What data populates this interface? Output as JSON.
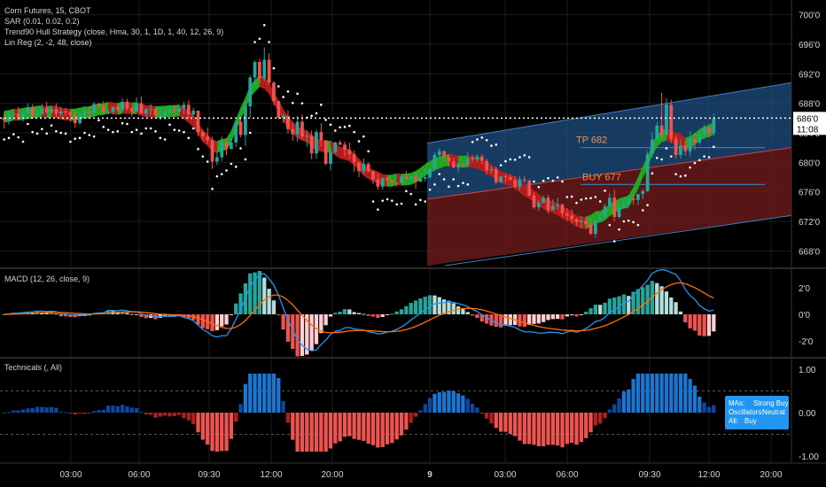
{
  "header": {
    "symbol_line": "Corn Futures, 15, CBOT",
    "indicators": [
      "SAR (0.01, 0.02, 0.2)",
      "Trend90 Hull Strategy (close, Hma, 30, 1, 1D, 1, 40, 12, 26, 9)",
      "Lin Reg (2, -2, 48, close)"
    ]
  },
  "price_axis": {
    "ticks": [
      "700'0",
      "696'0",
      "692'0",
      "688'0",
      "684'0",
      "680'0",
      "676'0",
      "672'0",
      "668'0"
    ],
    "last_price": "686'0",
    "countdown": "11:08"
  },
  "labels": {
    "tp": "TP 682",
    "buy": "BUY 677"
  },
  "macd": {
    "title": "MACD (12, 26, close, 9)",
    "ticks": [
      "2'0",
      "0'0",
      "-2'0"
    ]
  },
  "technicals": {
    "title": "Technicals (, All)",
    "ticks": [
      "1.00",
      "0.00",
      "-1.00"
    ],
    "box": [
      {
        "k": "MAs:",
        "v": "Strong Buy"
      },
      {
        "k": "Oscillators:",
        "v": "Neutral"
      },
      {
        "k": "All:",
        "v": "Buy"
      }
    ]
  },
  "time_axis": [
    "03:00",
    "06:00",
    "09:30",
    "12:00",
    "20:00",
    "9",
    "03:00",
    "06:00",
    "09:30",
    "12:00",
    "20:00"
  ],
  "colors": {
    "up": "#26a69a",
    "down": "#ef5350",
    "hull_green": "#1faa1f",
    "hull_red": "#b71c1c",
    "macd": "#2196f3",
    "signal": "#ff6d00",
    "grid": "#1c1c1c",
    "axis_text": "#d1d4dc",
    "channel_blue": "#1e4d80",
    "channel_red": "#6e1a1a",
    "box": "#2196f3"
  },
  "chart_data": {
    "type": "candlestick",
    "price_range": [
      666,
      702
    ],
    "candles": [
      [
        686.1,
        685.7,
        686.8,
        684.6
      ],
      [
        685.7,
        686.4,
        687.0,
        685.1
      ],
      [
        686.4,
        686.6,
        687.1,
        685.9
      ],
      [
        686.6,
        686.1,
        687.5,
        685.8
      ],
      [
        686.1,
        686.6,
        687.0,
        685.5
      ],
      [
        686.6,
        687.4,
        688.0,
        686.7
      ],
      [
        687.4,
        686.4,
        687.9,
        685.9
      ],
      [
        686.4,
        686.5,
        687.3,
        686.0
      ],
      [
        686.5,
        687.3,
        687.9,
        686.9
      ],
      [
        687.3,
        686.8,
        688.2,
        686.6
      ],
      [
        686.8,
        687.2,
        687.7,
        686.5
      ],
      [
        687.2,
        686.6,
        688.0,
        686.0
      ],
      [
        686.6,
        686.9,
        687.6,
        686.1
      ],
      [
        686.9,
        686.8,
        687.4,
        686.3
      ],
      [
        686.8,
        686.4,
        686.9,
        685.5
      ],
      [
        686.4,
        685.3,
        686.9,
        684.7
      ],
      [
        685.3,
        686.3,
        686.8,
        685.1
      ],
      [
        686.3,
        686.9,
        687.6,
        686.1
      ],
      [
        686.9,
        686.7,
        687.6,
        686.1
      ],
      [
        686.7,
        687.9,
        688.2,
        686.2
      ],
      [
        687.9,
        687.6,
        688.1,
        687.2
      ],
      [
        687.6,
        686.8,
        688.3,
        686.6
      ],
      [
        686.8,
        686.8,
        687.2,
        686.5
      ],
      [
        686.8,
        687.5,
        687.6,
        686.5
      ],
      [
        687.5,
        687.1,
        688.0,
        686.9
      ],
      [
        687.1,
        688.2,
        688.7,
        686.8
      ],
      [
        688.2,
        687.3,
        688.6,
        687.0
      ],
      [
        687.3,
        686.9,
        687.5,
        686.2
      ],
      [
        686.9,
        688.0,
        688.8,
        686.8
      ],
      [
        688.0,
        686.6,
        688.9,
        686.6
      ],
      [
        686.6,
        687.2,
        687.4,
        686.1
      ],
      [
        687.2,
        687.2,
        687.9,
        686.4
      ],
      [
        687.2,
        686.4,
        687.4,
        686.3
      ],
      [
        686.4,
        686.4,
        687.4,
        685.7
      ],
      [
        686.4,
        686.7,
        687.4,
        685.8
      ],
      [
        686.7,
        687.1,
        687.4,
        686.6
      ],
      [
        687.1,
        686.9,
        687.7,
        686.2
      ],
      [
        686.9,
        687.3,
        687.7,
        686.4
      ],
      [
        687.3,
        687.8,
        688.2,
        686.5
      ],
      [
        687.8,
        686.5,
        688.4,
        686.0
      ],
      [
        686.5,
        687.0,
        687.4,
        686.1
      ],
      [
        687.0,
        684.1,
        687.0,
        683.6
      ],
      [
        684.1,
        683.5,
        684.5,
        682.9
      ],
      [
        683.5,
        683.0,
        684.7,
        682.5
      ],
      [
        683.0,
        680.1,
        683.5,
        679.1
      ],
      [
        680.1,
        680.7,
        681.4,
        679.6
      ],
      [
        680.7,
        682.7,
        683.5,
        680.2
      ],
      [
        682.7,
        681.8,
        683.3,
        681.0
      ],
      [
        681.8,
        682.7,
        683.3,
        682.2
      ],
      [
        682.7,
        685.5,
        685.7,
        682.1
      ],
      [
        685.5,
        683.7,
        686.1,
        683.4
      ],
      [
        683.7,
        687.6,
        688.1,
        682.2
      ],
      [
        687.6,
        691.5,
        691.8,
        686.1
      ],
      [
        691.5,
        693.6,
        693.8,
        690.4
      ],
      [
        693.6,
        691.4,
        694.0,
        690.7
      ],
      [
        691.4,
        693.9,
        695.6,
        691.0
      ],
      [
        693.9,
        690.8,
        694.8,
        690.5
      ],
      [
        690.8,
        688.3,
        691.0,
        687.7
      ],
      [
        688.3,
        686.0,
        688.3,
        685.8
      ],
      [
        686.0,
        686.3,
        686.6,
        685.3
      ],
      [
        686.3,
        684.5,
        687.1,
        683.9
      ],
      [
        684.5,
        683.8,
        685.3,
        682.9
      ],
      [
        683.8,
        685.5,
        686.3,
        682.8
      ],
      [
        685.5,
        683.5,
        686.5,
        683.1
      ],
      [
        683.5,
        683.6,
        684.3,
        682.1
      ],
      [
        683.6,
        681.2,
        684.3,
        680.4
      ],
      [
        681.2,
        684.1,
        684.4,
        680.5
      ],
      [
        684.1,
        683.0,
        685.3,
        682.1
      ],
      [
        683.0,
        679.8,
        683.0,
        679.6
      ],
      [
        679.8,
        681.4,
        682.1,
        678.9
      ],
      [
        681.4,
        682.7,
        682.8,
        681.2
      ],
      [
        682.7,
        682.4,
        683.0,
        682.3
      ],
      [
        682.4,
        681.7,
        682.8,
        680.8
      ],
      [
        681.7,
        681.1,
        682.7,
        680.4
      ],
      [
        681.1,
        680.0,
        681.6,
        678.7
      ],
      [
        680.0,
        678.8,
        680.1,
        678.0
      ],
      [
        678.8,
        679.8,
        680.5,
        678.4
      ],
      [
        679.8,
        678.8,
        680.0,
        678.6
      ],
      [
        678.8,
        677.7,
        678.8,
        677.1
      ],
      [
        677.7,
        676.7,
        678.5,
        676.3
      ],
      [
        676.7,
        677.9,
        677.9,
        676.3
      ],
      [
        677.9,
        677.6,
        678.0,
        676.8
      ],
      [
        677.6,
        677.3,
        677.6,
        676.9
      ],
      [
        677.3,
        677.2,
        677.3,
        676.7
      ],
      [
        677.2,
        678.1,
        678.4,
        677.1
      ],
      [
        678.1,
        677.8,
        678.8,
        677.6
      ],
      [
        677.8,
        678.1,
        678.2,
        677.5
      ],
      [
        678.1,
        677.4,
        678.6,
        676.4
      ],
      [
        677.4,
        677.8,
        678.4,
        677.3
      ],
      [
        677.8,
        678.0,
        679.2,
        677.4
      ],
      [
        678.0,
        679.1,
        679.2,
        677.8
      ],
      [
        679.1,
        681.0,
        681.4,
        678.8
      ],
      [
        681.0,
        681.5,
        681.9,
        680.5
      ],
      [
        681.5,
        680.7,
        681.6,
        680.1
      ],
      [
        680.7,
        680.1,
        681.1,
        679.4
      ],
      [
        680.1,
        679.3,
        680.6,
        679.2
      ],
      [
        679.3,
        679.8,
        680.0,
        678.6
      ],
      [
        679.8,
        679.7,
        680.1,
        679.3
      ],
      [
        679.7,
        680.6,
        681.4,
        679.4
      ],
      [
        680.6,
        680.4,
        681.0,
        680.0
      ],
      [
        680.4,
        680.8,
        681.1,
        680.0
      ],
      [
        680.8,
        680.2,
        681.1,
        679.7
      ],
      [
        680.2,
        678.9,
        680.5,
        678.3
      ],
      [
        678.9,
        679.1,
        679.5,
        678.5
      ],
      [
        679.1,
        677.3,
        679.4,
        677.0
      ],
      [
        677.3,
        678.1,
        678.1,
        677.2
      ],
      [
        678.1,
        678.0,
        678.4,
        677.3
      ],
      [
        678.0,
        677.6,
        678.4,
        677.5
      ],
      [
        677.6,
        676.7,
        678.1,
        676.4
      ],
      [
        676.7,
        677.7,
        678.2,
        676.2
      ],
      [
        677.7,
        677.5,
        678.2,
        677.2
      ],
      [
        677.5,
        675.5,
        677.7,
        675.4
      ],
      [
        675.5,
        673.9,
        675.9,
        673.7
      ],
      [
        673.9,
        674.5,
        674.9,
        673.4
      ],
      [
        674.5,
        675.2,
        675.5,
        674.5
      ],
      [
        675.2,
        673.5,
        675.6,
        673.0
      ],
      [
        673.5,
        674.1,
        675.0,
        673.5
      ],
      [
        674.1,
        674.3,
        675.2,
        673.6
      ],
      [
        674.3,
        673.1,
        674.4,
        672.6
      ],
      [
        673.1,
        672.8,
        673.8,
        672.0
      ],
      [
        672.8,
        672.3,
        673.6,
        671.7
      ],
      [
        672.3,
        671.9,
        672.5,
        671.4
      ],
      [
        671.9,
        672.1,
        672.7,
        671.0
      ],
      [
        672.1,
        671.6,
        672.6,
        670.9
      ],
      [
        671.6,
        670.3,
        672.4,
        670.2
      ],
      [
        670.3,
        672.1,
        672.3,
        669.8
      ],
      [
        672.1,
        672.5,
        673.2,
        672.1
      ],
      [
        672.5,
        674.0,
        674.4,
        672.5
      ],
      [
        674.0,
        675.2,
        675.8,
        673.9
      ],
      [
        675.2,
        672.6,
        676.3,
        672.0
      ],
      [
        672.6,
        673.9,
        674.2,
        672.4
      ],
      [
        673.9,
        674.3,
        675.1,
        673.8
      ],
      [
        674.3,
        675.1,
        675.6,
        674.2
      ],
      [
        675.1,
        674.9,
        675.6,
        674.3
      ],
      [
        674.9,
        675.7,
        675.7,
        674.2
      ],
      [
        675.7,
        676.1,
        676.4,
        675.0
      ],
      [
        676.1,
        681.1,
        681.5,
        676.0
      ],
      [
        681.1,
        683.1,
        684.1,
        680.6
      ],
      [
        683.1,
        685.0,
        685.5,
        683.0
      ],
      [
        685.0,
        683.7,
        689.4,
        683.1
      ],
      [
        683.7,
        687.8,
        688.7,
        683.4
      ],
      [
        687.8,
        683.2,
        688.5,
        682.6
      ],
      [
        683.2,
        681.0,
        683.7,
        680.5
      ],
      [
        681.0,
        682.3,
        683.1,
        680.5
      ],
      [
        682.3,
        681.5,
        683.0,
        680.9
      ],
      [
        681.5,
        683.2,
        684.2,
        680.8
      ],
      [
        683.2,
        682.7,
        684.0,
        681.7
      ],
      [
        682.7,
        683.8,
        684.3,
        682.4
      ],
      [
        683.8,
        684.7,
        685.1,
        683.2
      ],
      [
        684.7,
        684.0,
        685.3,
        683.4
      ],
      [
        684.0,
        686.0,
        686.6,
        683.6
      ]
    ],
    "tp": 682,
    "buy": 677,
    "last": 686
  }
}
